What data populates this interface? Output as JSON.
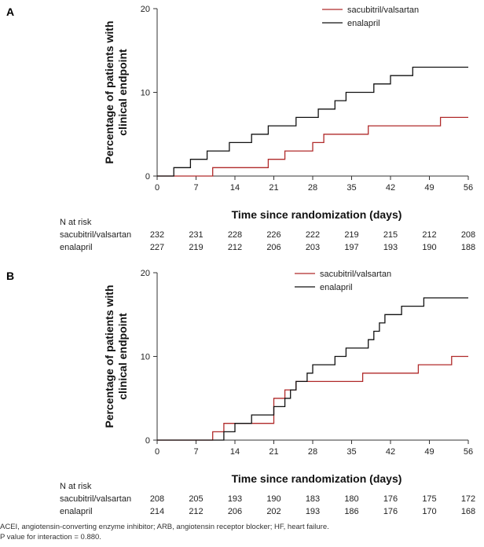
{
  "chart_data": [
    {
      "panel": "A",
      "type": "line",
      "step": true,
      "xlabel": "Time since randomization (days)",
      "ylabel": [
        "Percentage of patients with",
        "clinical endpoint"
      ],
      "xlim": [
        0,
        56
      ],
      "ylim": [
        0,
        20
      ],
      "xticks": [
        0,
        7,
        14,
        21,
        28,
        35,
        42,
        49,
        56
      ],
      "yticks": [
        0,
        10,
        20
      ],
      "legend_position": "top-right",
      "series": [
        {
          "name": "sacubitril/valsartan",
          "color": "#b02a2a",
          "points": [
            [
              0,
              0
            ],
            [
              10,
              0
            ],
            [
              10,
              1
            ],
            [
              20,
              1
            ],
            [
              20,
              2
            ],
            [
              23,
              2
            ],
            [
              23,
              3
            ],
            [
              28,
              3
            ],
            [
              28,
              4
            ],
            [
              30,
              4
            ],
            [
              30,
              5
            ],
            [
              38,
              5
            ],
            [
              38,
              6
            ],
            [
              51,
              6
            ],
            [
              51,
              7
            ],
            [
              56,
              7
            ]
          ]
        },
        {
          "name": "enalapril",
          "color": "#111111",
          "points": [
            [
              0,
              0
            ],
            [
              3,
              0
            ],
            [
              3,
              1
            ],
            [
              6,
              1
            ],
            [
              6,
              2
            ],
            [
              9,
              2
            ],
            [
              9,
              3
            ],
            [
              13,
              3
            ],
            [
              13,
              4
            ],
            [
              17,
              4
            ],
            [
              17,
              5
            ],
            [
              20,
              5
            ],
            [
              20,
              6
            ],
            [
              25,
              6
            ],
            [
              25,
              7
            ],
            [
              29,
              7
            ],
            [
              29,
              8
            ],
            [
              32,
              8
            ],
            [
              32,
              9
            ],
            [
              34,
              9
            ],
            [
              34,
              10
            ],
            [
              39,
              10
            ],
            [
              39,
              11
            ],
            [
              42,
              11
            ],
            [
              42,
              12
            ],
            [
              46,
              12
            ],
            [
              46,
              13
            ],
            [
              56,
              13
            ]
          ]
        }
      ],
      "risk_table": {
        "header": "N at risk",
        "timepoints": [
          0,
          7,
          14,
          21,
          28,
          35,
          42,
          49,
          56
        ],
        "rows": [
          {
            "label": "sacubitril/valsartan",
            "values": [
              "232",
              "231",
              "228",
              "226",
              "222",
              "219",
              "215",
              "212",
              "208"
            ]
          },
          {
            "label": "enalapril",
            "values": [
              "227",
              "219",
              "212",
              "206",
              "203",
              "197",
              "193",
              "190",
              "188"
            ]
          }
        ]
      }
    },
    {
      "panel": "B",
      "type": "line",
      "step": true,
      "xlabel": "Time since randomization (days)",
      "ylabel": [
        "Percentage of patients with",
        "clinical endpoint"
      ],
      "xlim": [
        0,
        56
      ],
      "ylim": [
        0,
        20
      ],
      "xticks": [
        0,
        7,
        14,
        21,
        28,
        35,
        42,
        49,
        56
      ],
      "yticks": [
        0,
        10,
        20
      ],
      "legend_position": "top-right",
      "series": [
        {
          "name": "sacubitril/valsartan",
          "color": "#b02a2a",
          "points": [
            [
              0,
              0
            ],
            [
              10,
              0
            ],
            [
              10,
              1
            ],
            [
              12,
              1
            ],
            [
              12,
              2
            ],
            [
              21,
              2
            ],
            [
              21,
              5
            ],
            [
              23,
              5
            ],
            [
              23,
              6
            ],
            [
              25,
              6
            ],
            [
              25,
              7
            ],
            [
              37,
              7
            ],
            [
              37,
              8
            ],
            [
              47,
              8
            ],
            [
              47,
              9
            ],
            [
              53,
              9
            ],
            [
              53,
              10
            ],
            [
              56,
              10
            ]
          ]
        },
        {
          "name": "enalapril",
          "color": "#111111",
          "points": [
            [
              0,
              0
            ],
            [
              12,
              0
            ],
            [
              12,
              1
            ],
            [
              14,
              1
            ],
            [
              14,
              2
            ],
            [
              17,
              2
            ],
            [
              17,
              3
            ],
            [
              21,
              3
            ],
            [
              21,
              4
            ],
            [
              23,
              4
            ],
            [
              23,
              5
            ],
            [
              24,
              5
            ],
            [
              24,
              6
            ],
            [
              25,
              6
            ],
            [
              25,
              7
            ],
            [
              27,
              7
            ],
            [
              27,
              8
            ],
            [
              28,
              8
            ],
            [
              28,
              9
            ],
            [
              32,
              9
            ],
            [
              32,
              10
            ],
            [
              34,
              10
            ],
            [
              34,
              11
            ],
            [
              38,
              11
            ],
            [
              38,
              12
            ],
            [
              39,
              12
            ],
            [
              39,
              13
            ],
            [
              40,
              13
            ],
            [
              40,
              14
            ],
            [
              41,
              14
            ],
            [
              41,
              15
            ],
            [
              44,
              15
            ],
            [
              44,
              16
            ],
            [
              48,
              16
            ],
            [
              48,
              17
            ],
            [
              56,
              17
            ]
          ]
        }
      ],
      "risk_table": {
        "header": "N at risk",
        "timepoints": [
          0,
          7,
          14,
          21,
          28,
          35,
          42,
          49,
          56
        ],
        "rows": [
          {
            "label": "sacubitril/valsartan",
            "values": [
              "208",
              "205",
              "193",
              "190",
              "183",
              "180",
              "176",
              "175",
              "172"
            ]
          },
          {
            "label": "enalapril",
            "values": [
              "214",
              "212",
              "206",
              "202",
              "193",
              "186",
              "176",
              "170",
              "168"
            ]
          }
        ]
      }
    }
  ],
  "footnotes": {
    "abbreviations": "ACEI, angiotensin-converting enzyme inhibitor; ARB, angiotensin receptor blocker; HF, heart failure.",
    "pvalue": "P value for interaction = 0.880."
  }
}
